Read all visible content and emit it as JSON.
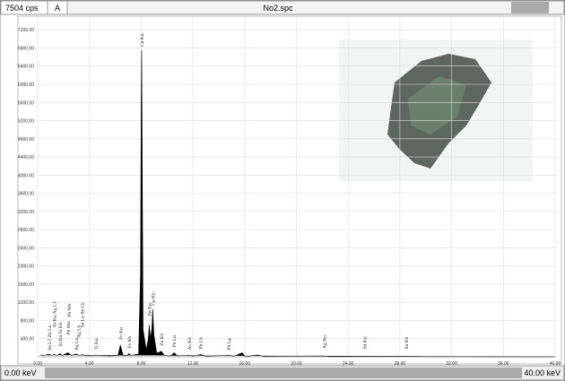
{
  "chart_data": {
    "type": "area",
    "title": "No2.spc",
    "cps_label": "7504 cps",
    "mode": "A",
    "x_start_label": "0.00 keV",
    "x_end_label": "40.00 keV",
    "color": "#000000",
    "grid": true,
    "xlim": [
      0,
      40
    ],
    "ylim": [
      0,
      7500
    ],
    "xticks": [
      {
        "value": 0,
        "label": "0.00"
      },
      {
        "value": 4,
        "label": "4.00"
      },
      {
        "value": 8,
        "label": "8.00"
      },
      {
        "value": 12,
        "label": "12.00"
      },
      {
        "value": 16,
        "label": "16.00"
      },
      {
        "value": 20,
        "label": "20.00"
      },
      {
        "value": 24,
        "label": "24.00"
      },
      {
        "value": 28,
        "label": "28.00"
      },
      {
        "value": 32,
        "label": "32.00"
      },
      {
        "value": 36,
        "label": "36.00"
      },
      {
        "value": 40,
        "label": "40.00"
      }
    ],
    "yticks": [
      {
        "value": 400,
        "label": "400.00"
      },
      {
        "value": 800,
        "label": "800.00"
      },
      {
        "value": 1200,
        "label": "1200.00"
      },
      {
        "value": 1600,
        "label": "1600.00"
      },
      {
        "value": 2000,
        "label": "2000.00"
      },
      {
        "value": 2400,
        "label": "2400.00"
      },
      {
        "value": 2800,
        "label": "2800.00"
      },
      {
        "value": 3200,
        "label": "3200.00"
      },
      {
        "value": 3600,
        "label": "3600.00"
      },
      {
        "value": 4000,
        "label": "4000.00"
      },
      {
        "value": 4400,
        "label": "4400.00"
      },
      {
        "value": 4800,
        "label": "4800.00"
      },
      {
        "value": 5200,
        "label": "5200.00"
      },
      {
        "value": 5600,
        "label": "5600.00"
      },
      {
        "value": 6000,
        "label": "6000.00"
      },
      {
        "value": 6400,
        "label": "6400.00"
      },
      {
        "value": 6800,
        "label": "6800.00"
      },
      {
        "value": 7200,
        "label": "7200.00"
      }
    ],
    "x": [
      0.2,
      0.5,
      0.9,
      1.0,
      1.3,
      1.5,
      1.74,
      1.9,
      2.34,
      2.44,
      2.6,
      2.98,
      3.15,
      3.3,
      3.44,
      3.7,
      4.5,
      5.5,
      6.2,
      6.4,
      6.6,
      6.9,
      7.06,
      7.2,
      7.8,
      7.95,
      8.0,
      8.04,
      8.09,
      8.15,
      8.4,
      8.55,
      8.63,
      8.72,
      8.82,
      8.9,
      8.98,
      9.2,
      9.57,
      9.8,
      10.3,
      10.55,
      10.8,
      11.7,
      12.0,
      12.6,
      13,
      14.76,
      15.2,
      15.8,
      16.0,
      16.3,
      17.0,
      17.5,
      19,
      22.16,
      22.5,
      24,
      25.27,
      26,
      28.5,
      30,
      35,
      40
    ],
    "values": [
      40,
      30,
      60,
      30,
      50,
      30,
      70,
      30,
      90,
      70,
      30,
      60,
      40,
      30,
      50,
      25,
      35,
      20,
      30,
      260,
      30,
      25,
      70,
      30,
      60,
      1800,
      5450,
      6750,
      3800,
      600,
      150,
      400,
      700,
      400,
      600,
      1050,
      500,
      80,
      120,
      30,
      20,
      90,
      20,
      30,
      15,
      50,
      15,
      30,
      15,
      90,
      20,
      15,
      40,
      10,
      15,
      20,
      8,
      5,
      10,
      5,
      8,
      3,
      2,
      0
    ],
    "annotations": [
      {
        "text": "Sn Lℓ Zn Lα",
        "x": 0.9
      },
      {
        "text": "Al Kα Ag Lℓ",
        "x": 1.3
      },
      {
        "text": "Si Kα Si Kb",
        "x": 1.74
      },
      {
        "text": "Pb Mα",
        "x": 2.34
      },
      {
        "text": "Pb Mb",
        "x": 2.44
      },
      {
        "text": "Ag Lα",
        "x": 2.98
      },
      {
        "text": "Ag Lb",
        "x": 3.15
      },
      {
        "text": "Sn Lα Sn Lb",
        "x": 3.44
      },
      {
        "text": "Ti Kα",
        "x": 4.5
      },
      {
        "text": "Fe Kα",
        "x": 6.4
      },
      {
        "text": "Fe Kb",
        "x": 7.06
      },
      {
        "text": "Cu Kα",
        "x": 8.04
      },
      {
        "text": "Zn Kα",
        "x": 8.63
      },
      {
        "text": "Cu Kb",
        "x": 8.9
      },
      {
        "text": "Zn Kb",
        "x": 9.57
      },
      {
        "text": "Pb Lα",
        "x": 10.55
      },
      {
        "text": "As Kb",
        "x": 11.7
      },
      {
        "text": "Pb Lb",
        "x": 12.6
      },
      {
        "text": "Pb Lg",
        "x": 14.76
      },
      {
        "text": "Ag Kα",
        "x": 22.16
      },
      {
        "text": "Sn Kα",
        "x": 25.27
      },
      {
        "text": "Sn Kb",
        "x": 28.5
      }
    ]
  }
}
